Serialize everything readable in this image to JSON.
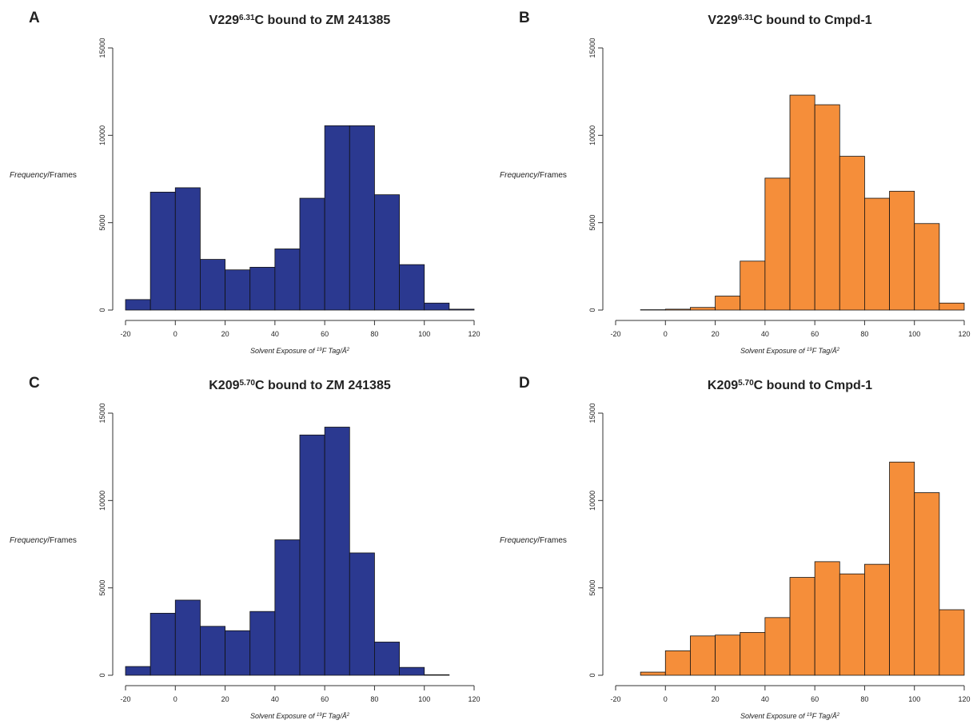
{
  "chart_data": [
    {
      "type": "histogram",
      "panel_label": "A",
      "title": [
        "V229",
        "6.31",
        "C bound to ZM 241385"
      ],
      "xlabel": [
        "Solvent Exposure of ",
        "19",
        "F Tag/Å",
        "2"
      ],
      "ylabel": [
        "Frequency",
        "/Frames"
      ],
      "bins": [
        -20,
        -10,
        0,
        10,
        20,
        30,
        40,
        50,
        60,
        70,
        80,
        90,
        100,
        110,
        120
      ],
      "values": [
        600,
        6750,
        7000,
        2900,
        2300,
        2450,
        3500,
        6400,
        10550,
        10550,
        6600,
        2600,
        400,
        50
      ],
      "color": "#2b3990",
      "xlim": [
        -20,
        120
      ],
      "xticks": [
        -20,
        0,
        20,
        40,
        60,
        80,
        100,
        120
      ],
      "ylim": [
        0,
        15000
      ],
      "yticks": [
        0,
        5000,
        10000,
        15000
      ]
    },
    {
      "type": "histogram",
      "panel_label": "B",
      "title": [
        "V229",
        "6.31",
        "C bound to Cmpd-1"
      ],
      "xlabel": [
        "Solvent Exposure of ",
        "19",
        "F Tag/Å",
        "2"
      ],
      "ylabel": [
        "Frequency",
        "/Frames"
      ],
      "bins": [
        -20,
        -10,
        0,
        10,
        20,
        30,
        40,
        50,
        60,
        70,
        80,
        90,
        100,
        110,
        120
      ],
      "values": [
        0,
        20,
        50,
        150,
        800,
        2800,
        7550,
        12300,
        11750,
        8800,
        6400,
        6800,
        4950,
        400
      ],
      "color": "#f58e3a",
      "xlim": [
        -20,
        120
      ],
      "xticks": [
        -20,
        0,
        20,
        40,
        60,
        80,
        100,
        120
      ],
      "ylim": [
        0,
        15000
      ],
      "yticks": [
        0,
        5000,
        10000,
        15000
      ]
    },
    {
      "type": "histogram",
      "panel_label": "C",
      "title": [
        "K209",
        "5.70",
        "C bound to ZM 241385"
      ],
      "xlabel": [
        "Solvent Exposure of ",
        "19",
        "F Tag/Å",
        "2"
      ],
      "ylabel": [
        "Frequency",
        "/Frames"
      ],
      "bins": [
        -20,
        -10,
        0,
        10,
        20,
        30,
        40,
        50,
        60,
        70,
        80,
        90,
        100,
        110,
        120
      ],
      "values": [
        500,
        3550,
        4300,
        2800,
        2550,
        3650,
        7750,
        13750,
        14200,
        7000,
        1900,
        450,
        30,
        0
      ],
      "color": "#2b3990",
      "xlim": [
        -20,
        120
      ],
      "xticks": [
        -20,
        0,
        20,
        40,
        60,
        80,
        100,
        120
      ],
      "ylim": [
        0,
        15000
      ],
      "yticks": [
        0,
        5000,
        10000,
        15000
      ]
    },
    {
      "type": "histogram",
      "panel_label": "D",
      "title": [
        "K209",
        "5.70",
        "C bound to Cmpd-1"
      ],
      "xlabel": [
        "Solvent Exposure of ",
        "19",
        "F Tag/Å",
        "2"
      ],
      "ylabel": [
        "Frequency",
        "/Frames"
      ],
      "bins": [
        -20,
        -10,
        0,
        10,
        20,
        30,
        40,
        50,
        60,
        70,
        80,
        90,
        100,
        110,
        120
      ],
      "values": [
        0,
        180,
        1400,
        2250,
        2300,
        2450,
        3300,
        5600,
        6500,
        5800,
        6350,
        12200,
        10450,
        3750
      ],
      "color": "#f58e3a",
      "xlim": [
        -20,
        120
      ],
      "xticks": [
        -20,
        0,
        20,
        40,
        60,
        80,
        100,
        120
      ],
      "ylim": [
        0,
        15000
      ],
      "yticks": [
        0,
        5000,
        10000,
        15000
      ]
    }
  ]
}
